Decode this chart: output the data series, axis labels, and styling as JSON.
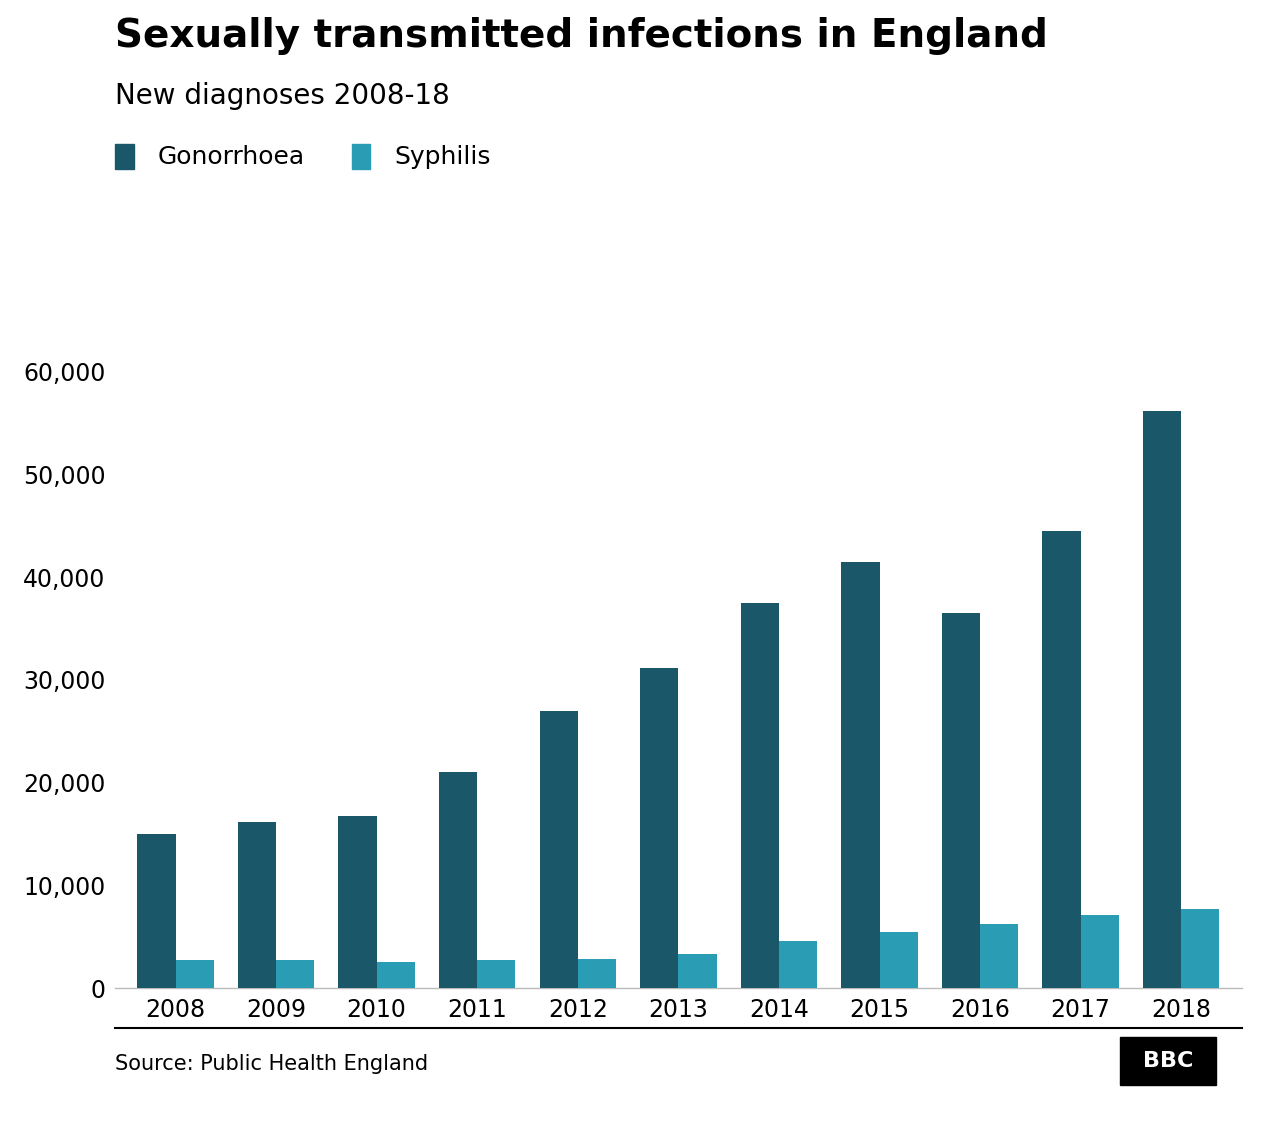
{
  "title": "Sexually transmitted infections in England",
  "subtitle": "New diagnoses 2008-18",
  "years": [
    2008,
    2009,
    2010,
    2011,
    2012,
    2013,
    2014,
    2015,
    2016,
    2017,
    2018
  ],
  "gonorrhoea": [
    15000,
    16200,
    16800,
    21000,
    27000,
    31200,
    37500,
    41500,
    36500,
    44500,
    56200
  ],
  "syphilis": [
    2800,
    2800,
    2600,
    2800,
    2900,
    3300,
    4600,
    5500,
    6300,
    7100,
    7700
  ],
  "gonorrhoea_color": "#1a5769",
  "syphilis_color": "#2a9db5",
  "background_color": "#ffffff",
  "legend_gonorrhoea": "Gonorrhoea",
  "legend_syphilis": "Syphilis",
  "source_text": "Source: Public Health England",
  "yticks": [
    0,
    10000,
    20000,
    30000,
    40000,
    50000,
    60000
  ],
  "ylim": [
    0,
    63000
  ],
  "bar_width": 0.38,
  "title_fontsize": 28,
  "subtitle_fontsize": 20,
  "tick_fontsize": 17,
  "legend_fontsize": 18,
  "source_fontsize": 15
}
